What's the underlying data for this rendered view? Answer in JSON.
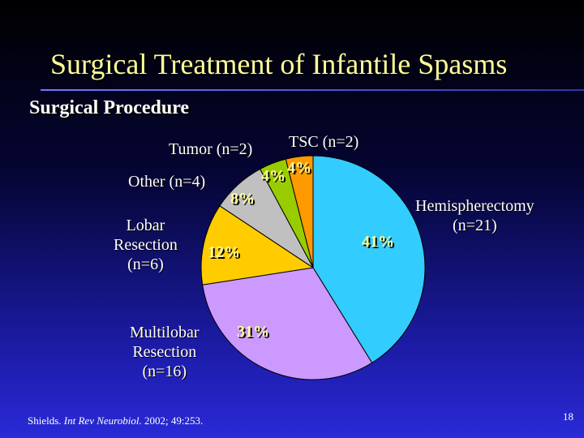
{
  "slide": {
    "title": "Surgical Treatment of Infantile Spasms",
    "subtitle": "Surgical Procedure",
    "citation_author": "Shields. ",
    "citation_journal": "Int Rev Neurobiol.",
    "citation_rest": " 2002; 49:253.",
    "slide_number": "18"
  },
  "chart_data": {
    "type": "pie",
    "title": "Surgical Procedure",
    "slices": [
      {
        "name": "Hemispherectomy",
        "label_lines": [
          "Hemispherectomy",
          "(n=21)"
        ],
        "n": 21,
        "percent_label": "41%",
        "color": "#33ccff"
      },
      {
        "name": "Multilobar Resection",
        "label_lines": [
          "Multilobar",
          "Resection",
          "(n=16)"
        ],
        "n": 16,
        "percent_label": "31%",
        "color": "#cc99ff"
      },
      {
        "name": "Lobar Resection",
        "label_lines": [
          "Lobar",
          "Resection",
          "(n=6)"
        ],
        "n": 6,
        "percent_label": "12%",
        "color": "#ffcc00"
      },
      {
        "name": "Other",
        "label_lines": [
          "Other (n=4)"
        ],
        "n": 4,
        "percent_label": "8%",
        "color": "#c0c0c0"
      },
      {
        "name": "Tumor",
        "label_lines": [
          "Tumor (n=2)"
        ],
        "n": 2,
        "percent_label": "4%",
        "color": "#99cc00"
      },
      {
        "name": "TSC",
        "label_lines": [
          "TSC (n=2)"
        ],
        "n": 2,
        "percent_label": "4%",
        "color": "#ff9900"
      }
    ]
  }
}
